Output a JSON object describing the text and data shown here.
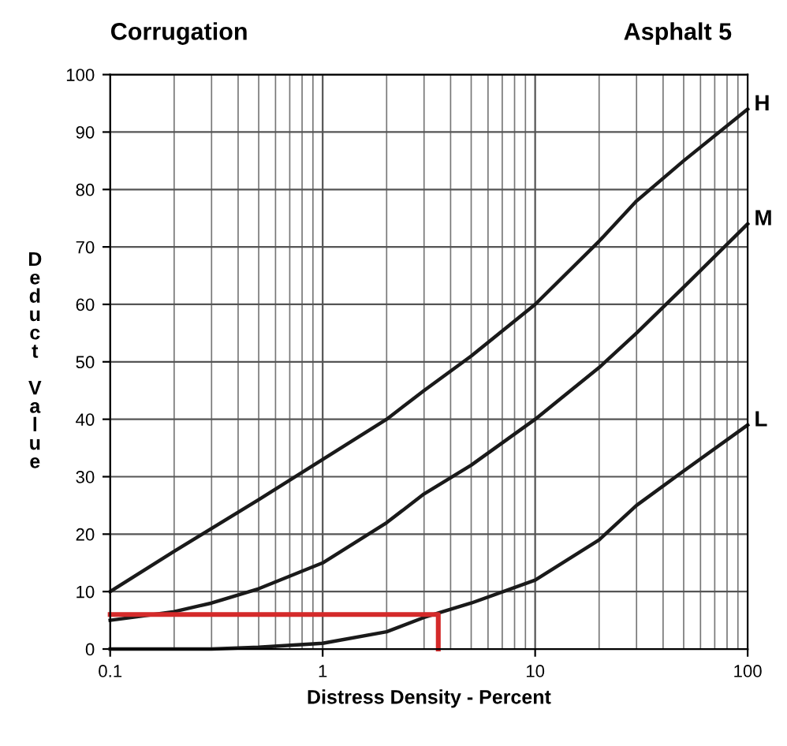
{
  "chart_data": {
    "type": "line",
    "title": "Corrugation",
    "subtitle": "Asphalt 5",
    "xlabel": "Distress Density - Percent",
    "ylabel": "Deduct Value",
    "log": "x",
    "xlim": [
      0.1,
      100
    ],
    "ylim": [
      0,
      100
    ],
    "xticks": [
      0.1,
      1,
      10,
      100
    ],
    "yticks": [
      0,
      10,
      20,
      30,
      40,
      50,
      60,
      70,
      80,
      90,
      100
    ],
    "grid": true,
    "marker": "none",
    "line_style": "solid",
    "series": [
      {
        "name": "H",
        "color": "#1a1a1a",
        "x": [
          0.1,
          0.2,
          0.5,
          1,
          2,
          3,
          5,
          10,
          20,
          30,
          50,
          100
        ],
        "values": [
          10,
          17,
          26,
          33,
          40,
          45,
          51,
          60,
          71,
          78,
          85,
          94
        ]
      },
      {
        "name": "M",
        "color": "#1a1a1a",
        "x": [
          0.1,
          0.2,
          0.3,
          0.5,
          1,
          2,
          3,
          5,
          10,
          20,
          30,
          50,
          100
        ],
        "values": [
          5,
          6.5,
          8,
          10.5,
          15,
          22,
          27,
          32,
          40,
          49,
          55,
          63,
          74
        ]
      },
      {
        "name": "L",
        "color": "#1a1a1a",
        "x": [
          0.1,
          0.3,
          0.5,
          1,
          2,
          3,
          5,
          10,
          20,
          30,
          50,
          100
        ],
        "values": [
          0,
          0,
          0.3,
          1,
          3,
          5.5,
          8,
          12,
          19,
          25,
          31,
          39
        ]
      },
      {
        "color": "#d42a2a",
        "x": [
          0.1,
          3.5,
          3.5
        ],
        "values": [
          6,
          6,
          0
        ]
      }
    ]
  }
}
